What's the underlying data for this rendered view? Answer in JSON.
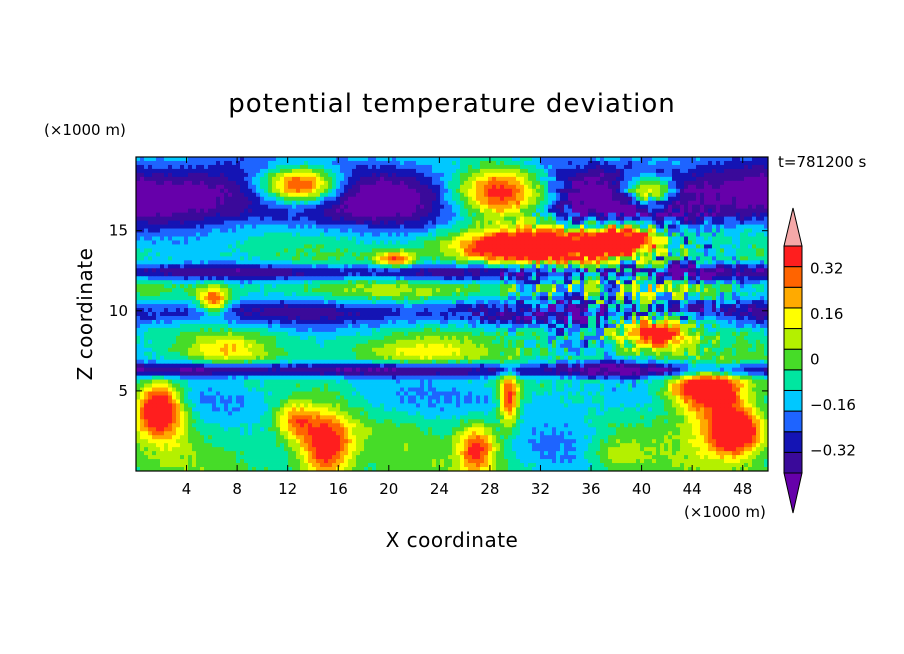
{
  "chart_data": {
    "type": "heatmap",
    "title": "potential temperature deviation",
    "xlabel": "X coordinate",
    "ylabel": "Z coordinate",
    "x_unit": "(×1000 m)",
    "y_unit": "(×1000 m)",
    "time_label": "t=781200 s",
    "xlim": [
      0,
      50
    ],
    "ylim": [
      0,
      19.6
    ],
    "x_ticks": [
      4,
      8,
      12,
      16,
      20,
      24,
      28,
      32,
      36,
      40,
      44,
      48
    ],
    "y_ticks": [
      5,
      10,
      15
    ],
    "colorbar": {
      "levels": [
        -0.4,
        -0.32,
        -0.24,
        -0.16,
        -0.08,
        0,
        0.08,
        0.16,
        0.24,
        0.32,
        0.4
      ],
      "labels": [
        "0.32",
        "0.16",
        "0",
        "−0.16",
        "−0.32"
      ],
      "label_values": [
        0.32,
        0.16,
        0,
        -0.16,
        -0.32
      ],
      "colors": [
        "#6600aa",
        "#3a0a9a",
        "#1414b4",
        "#1e64ff",
        "#00c8ff",
        "#00e6a0",
        "#46dc28",
        "#b4f000",
        "#ffff00",
        "#ffaa00",
        "#ff6400",
        "#ff1e1e",
        "#f5a8a8"
      ],
      "extend": "both"
    }
  }
}
